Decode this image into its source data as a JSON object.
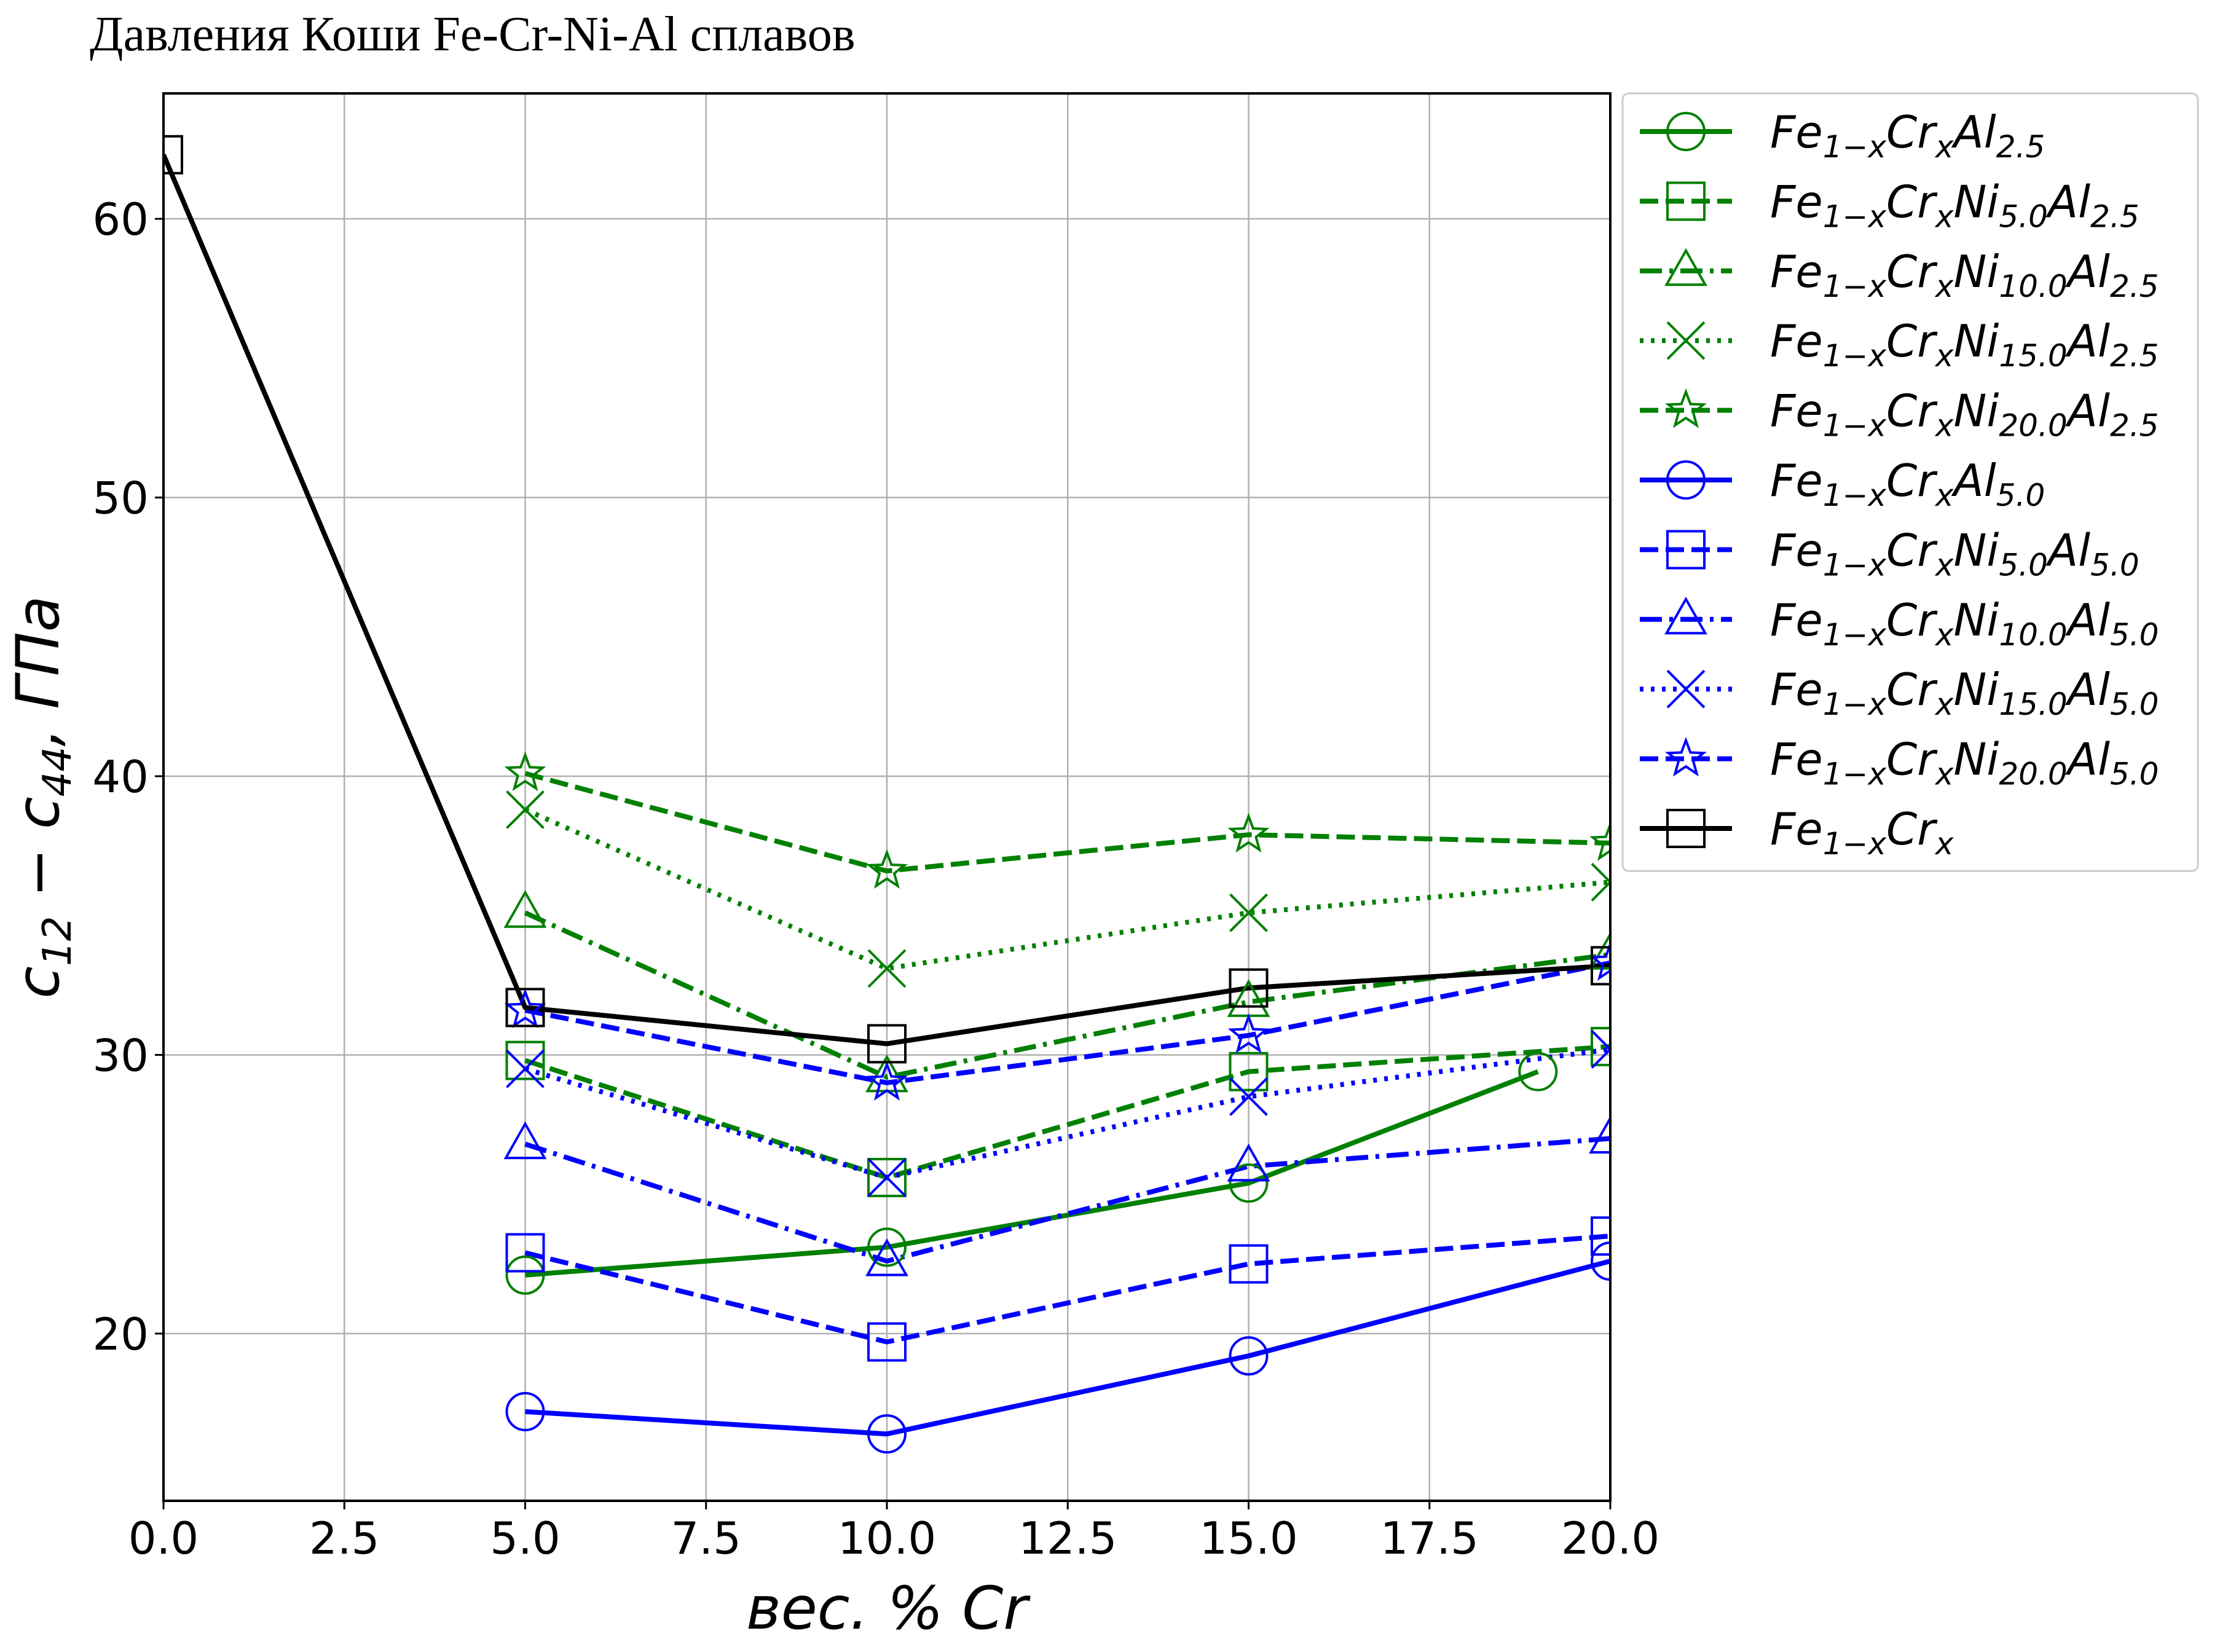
{
  "title": "Давления Коши Fe-Cr-Ni-Al сплавов",
  "chart_data": {
    "type": "line",
    "title": "Давления Коши Fe-Cr-Ni-Al сплавов",
    "xlabel": "вес. % Cr",
    "ylabel": "c₁₂ − c₄₄, ГПа",
    "xlim": [
      0,
      20
    ],
    "ylim": [
      14,
      64.5
    ],
    "xticks": [
      "0.0",
      "2.5",
      "5.0",
      "7.5",
      "10.0",
      "12.5",
      "15.0",
      "17.5",
      "20.0"
    ],
    "yticks": [
      "20",
      "30",
      "40",
      "50",
      "60"
    ],
    "grid": true,
    "legend_position": "outside-right",
    "series": [
      {
        "name": "Fe1−xCrxAl2.5",
        "name_parts": [
          [
            "Fe",
            ""
          ],
          [
            "1−x",
            "sub"
          ],
          [
            "Cr",
            ""
          ],
          [
            "x",
            "sub"
          ],
          [
            "Al",
            ""
          ],
          [
            "2.5",
            "sub"
          ]
        ],
        "color": "#008000",
        "dash": "solid",
        "marker": "circle",
        "x": [
          5,
          10,
          15,
          19
        ],
        "y": [
          22.1,
          23.1,
          25.4,
          29.4
        ]
      },
      {
        "name": "Fe1−xCrxNi5.0Al2.5",
        "name_parts": [
          [
            "Fe",
            ""
          ],
          [
            "1−x",
            "sub"
          ],
          [
            "Cr",
            ""
          ],
          [
            "x",
            "sub"
          ],
          [
            "Ni",
            ""
          ],
          [
            "5.0",
            "sub"
          ],
          [
            "Al",
            ""
          ],
          [
            "2.5",
            "sub"
          ]
        ],
        "color": "#008000",
        "dash": "dashed",
        "marker": "square",
        "x": [
          5,
          10,
          15,
          20
        ],
        "y": [
          29.8,
          25.6,
          29.4,
          30.3
        ]
      },
      {
        "name": "Fe1−xCrxNi10.0Al2.5",
        "name_parts": [
          [
            "Fe",
            ""
          ],
          [
            "1−x",
            "sub"
          ],
          [
            "Cr",
            ""
          ],
          [
            "x",
            "sub"
          ],
          [
            "Ni",
            ""
          ],
          [
            "10.0",
            "sub"
          ],
          [
            "Al",
            ""
          ],
          [
            "2.5",
            "sub"
          ]
        ],
        "color": "#008000",
        "dash": "dashdot",
        "marker": "triangle",
        "x": [
          5,
          10,
          15,
          20
        ],
        "y": [
          35.1,
          29.2,
          31.9,
          33.6
        ]
      },
      {
        "name": "Fe1−xCrxNi15.0Al2.5",
        "name_parts": [
          [
            "Fe",
            ""
          ],
          [
            "1−x",
            "sub"
          ],
          [
            "Cr",
            ""
          ],
          [
            "x",
            "sub"
          ],
          [
            "Ni",
            ""
          ],
          [
            "15.0",
            "sub"
          ],
          [
            "Al",
            ""
          ],
          [
            "2.5",
            "sub"
          ]
        ],
        "color": "#008000",
        "dash": "dotted",
        "marker": "x",
        "x": [
          5,
          10,
          15,
          20
        ],
        "y": [
          38.8,
          33.1,
          35.1,
          36.2
        ]
      },
      {
        "name": "Fe1−xCrxNi20.0Al2.5",
        "name_parts": [
          [
            "Fe",
            ""
          ],
          [
            "1−x",
            "sub"
          ],
          [
            "Cr",
            ""
          ],
          [
            "x",
            "sub"
          ],
          [
            "Ni",
            ""
          ],
          [
            "20.0",
            "sub"
          ],
          [
            "Al",
            ""
          ],
          [
            "2.5",
            "sub"
          ]
        ],
        "color": "#008000",
        "dash": "dashed",
        "marker": "star",
        "x": [
          5,
          10,
          15,
          20
        ],
        "y": [
          40.1,
          36.6,
          37.9,
          37.6
        ]
      },
      {
        "name": "Fe1−xCrxAl5.0",
        "name_parts": [
          [
            "Fe",
            ""
          ],
          [
            "1−x",
            "sub"
          ],
          [
            "Cr",
            ""
          ],
          [
            "x",
            "sub"
          ],
          [
            "Al",
            ""
          ],
          [
            "5.0",
            "sub"
          ]
        ],
        "color": "#0000ff",
        "dash": "solid",
        "marker": "circle",
        "x": [
          5,
          10,
          15,
          20
        ],
        "y": [
          17.2,
          16.4,
          19.2,
          22.6
        ]
      },
      {
        "name": "Fe1−xCrxNi5.0Al5.0",
        "name_parts": [
          [
            "Fe",
            ""
          ],
          [
            "1−x",
            "sub"
          ],
          [
            "Cr",
            ""
          ],
          [
            "x",
            "sub"
          ],
          [
            "Ni",
            ""
          ],
          [
            "5.0",
            "sub"
          ],
          [
            "Al",
            ""
          ],
          [
            "5.0",
            "sub"
          ]
        ],
        "color": "#0000ff",
        "dash": "dashed",
        "marker": "square",
        "x": [
          5,
          10,
          15,
          20
        ],
        "y": [
          22.9,
          19.7,
          22.5,
          23.5
        ]
      },
      {
        "name": "Fe1−xCrxNi10.0Al5.0",
        "name_parts": [
          [
            "Fe",
            ""
          ],
          [
            "1−x",
            "sub"
          ],
          [
            "Cr",
            ""
          ],
          [
            "x",
            "sub"
          ],
          [
            "Ni",
            ""
          ],
          [
            "10.0",
            "sub"
          ],
          [
            "Al",
            ""
          ],
          [
            "5.0",
            "sub"
          ]
        ],
        "color": "#0000ff",
        "dash": "dashdot",
        "marker": "triangle",
        "x": [
          5,
          10,
          15,
          20
        ],
        "y": [
          26.8,
          22.6,
          26.0,
          27.0
        ]
      },
      {
        "name": "Fe1−xCrxNi15.0Al5.0",
        "name_parts": [
          [
            "Fe",
            ""
          ],
          [
            "1−x",
            "sub"
          ],
          [
            "Cr",
            ""
          ],
          [
            "x",
            "sub"
          ],
          [
            "Ni",
            ""
          ],
          [
            "15.0",
            "sub"
          ],
          [
            "Al",
            ""
          ],
          [
            "5.0",
            "sub"
          ]
        ],
        "color": "#0000ff",
        "dash": "dotted",
        "marker": "x",
        "x": [
          5,
          10,
          15,
          20
        ],
        "y": [
          29.5,
          25.6,
          28.5,
          30.2
        ]
      },
      {
        "name": "Fe1−xCrxNi20.0Al5.0",
        "name_parts": [
          [
            "Fe",
            ""
          ],
          [
            "1−x",
            "sub"
          ],
          [
            "Cr",
            ""
          ],
          [
            "x",
            "sub"
          ],
          [
            "Ni",
            ""
          ],
          [
            "20.0",
            "sub"
          ],
          [
            "Al",
            ""
          ],
          [
            "5.0",
            "sub"
          ]
        ],
        "color": "#0000ff",
        "dash": "dashed",
        "marker": "star",
        "x": [
          5,
          10,
          15,
          20
        ],
        "y": [
          31.6,
          29.0,
          30.7,
          33.3
        ]
      },
      {
        "name": "Fe1−xCrx",
        "name_parts": [
          [
            "Fe",
            ""
          ],
          [
            "1−x",
            "sub"
          ],
          [
            "Cr",
            ""
          ],
          [
            "x",
            "sub"
          ]
        ],
        "color": "#000000",
        "dash": "solid",
        "marker": "square",
        "x": [
          0,
          5,
          10,
          15,
          20
        ],
        "y": [
          62.3,
          31.7,
          30.4,
          32.4,
          33.2
        ]
      }
    ]
  }
}
